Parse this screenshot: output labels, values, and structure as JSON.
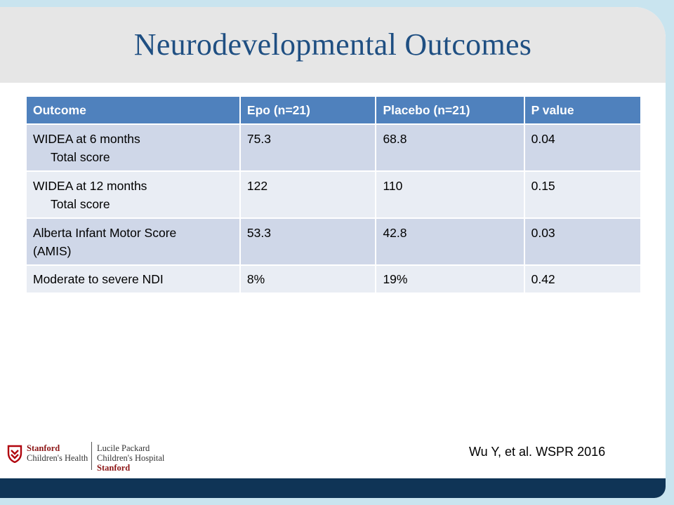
{
  "slide": {
    "title": "Neurodevelopmental Outcomes"
  },
  "table": {
    "headers": [
      "Outcome",
      "Epo (n=21)",
      "Placebo (n=21)",
      "P value"
    ],
    "rows": [
      {
        "outcome_line1": "WIDEA at 6 months",
        "outcome_line2": "Total score",
        "epo": "75.3",
        "placebo": "68.8",
        "p_value": "0.04"
      },
      {
        "outcome_line1": "WIDEA at 12 months",
        "outcome_line2": "Total score",
        "epo": "122",
        "placebo": "110",
        "p_value": "0.15"
      },
      {
        "outcome_line1": "Alberta Infant Motor Score",
        "outcome_line2": "(AMIS)",
        "epo": "53.3",
        "placebo": "42.8",
        "p_value": "0.03"
      },
      {
        "outcome_line1": "Moderate to severe NDI",
        "epo": "8%",
        "placebo": "19%",
        "p_value": "0.42"
      }
    ]
  },
  "logo": {
    "line1": "Stanford",
    "line2": "Children's Health",
    "line3": "Lucile Packard",
    "line4": "Children's Hospital",
    "line5": "Stanford"
  },
  "citation": "Wu Y, et al. WSPR 2016",
  "colors": {
    "title": "#1f4f82",
    "header_bg": "#4f81bd",
    "row_odd": "#cfd7e8",
    "row_even": "#e9edf4",
    "bottom_bar": "#0f3456",
    "frame": "#c9e4ef"
  }
}
